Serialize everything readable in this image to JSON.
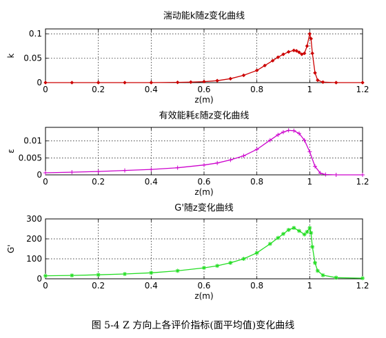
{
  "caption": "图  5-4   Z 方向上各评价指标(面平均值)变化曲线",
  "chart_data": [
    {
      "type": "line",
      "title": "湍动能k随z变化曲线",
      "xlabel": "z(m)",
      "ylabel": "k",
      "xlim": [
        0,
        1.2
      ],
      "ylim": [
        0,
        0.11
      ],
      "xticks": [
        "0",
        "0.2",
        "0.4",
        "0.6",
        "0.8",
        "1",
        "1.2"
      ],
      "yticks": [
        "0",
        "0.05",
        "0.1"
      ],
      "ytick_values": [
        0,
        0.05,
        0.1
      ],
      "grid": true,
      "marker": "diamond",
      "color": "#cc0000",
      "x": [
        0,
        0.1,
        0.2,
        0.3,
        0.4,
        0.5,
        0.55,
        0.6,
        0.65,
        0.7,
        0.75,
        0.8,
        0.83,
        0.86,
        0.88,
        0.9,
        0.92,
        0.94,
        0.95,
        0.96,
        0.97,
        0.98,
        0.99,
        1.0,
        1.005,
        1.01,
        1.02,
        1.03,
        1.05,
        1.1,
        1.2
      ],
      "y": [
        0,
        0,
        0,
        0,
        0,
        0.0005,
        0.001,
        0.002,
        0.004,
        0.008,
        0.015,
        0.025,
        0.035,
        0.045,
        0.052,
        0.058,
        0.063,
        0.066,
        0.065,
        0.062,
        0.058,
        0.06,
        0.075,
        0.1,
        0.09,
        0.06,
        0.02,
        0.005,
        0.001,
        0,
        0
      ]
    },
    {
      "type": "line",
      "title": "有效能耗ε随z变化曲线",
      "xlabel": "z(m)",
      "ylabel": "ε",
      "xlim": [
        0,
        1.2
      ],
      "ylim": [
        0,
        0.014
      ],
      "xticks": [
        "0",
        "0.2",
        "0.4",
        "0.6",
        "0.8",
        "1",
        "1.2"
      ],
      "yticks": [
        "0",
        "0.005",
        "0.01"
      ],
      "ytick_values": [
        0,
        0.005,
        0.01
      ],
      "grid": true,
      "marker": "plus",
      "color": "#cc00cc",
      "x": [
        0,
        0.1,
        0.2,
        0.3,
        0.4,
        0.5,
        0.6,
        0.65,
        0.7,
        0.75,
        0.8,
        0.85,
        0.88,
        0.9,
        0.92,
        0.94,
        0.96,
        0.98,
        1.0,
        1.02,
        1.04,
        1.06,
        1.1,
        1.2
      ],
      "y": [
        0.0006,
        0.0008,
        0.001,
        0.0013,
        0.0016,
        0.0021,
        0.0029,
        0.0035,
        0.0044,
        0.0056,
        0.0075,
        0.0102,
        0.0118,
        0.0126,
        0.0131,
        0.013,
        0.0122,
        0.0102,
        0.0068,
        0.0025,
        0.0005,
        0.0001,
        0,
        0
      ]
    },
    {
      "type": "line",
      "title": "G'随z变化曲线",
      "xlabel": "z(m)",
      "ylabel": "G'",
      "xlim": [
        0,
        1.2
      ],
      "ylim": [
        0,
        300
      ],
      "xticks": [
        "0",
        "0.2",
        "0.4",
        "0.6",
        "0.8",
        "1",
        "1.2"
      ],
      "yticks": [
        "0",
        "100",
        "200",
        "300"
      ],
      "ytick_values": [
        0,
        100,
        200,
        300
      ],
      "grid": true,
      "marker": "star",
      "color": "#22dd22",
      "x": [
        0,
        0.1,
        0.2,
        0.3,
        0.4,
        0.5,
        0.6,
        0.65,
        0.7,
        0.75,
        0.8,
        0.85,
        0.88,
        0.9,
        0.92,
        0.94,
        0.96,
        0.98,
        0.99,
        1.0,
        1.005,
        1.01,
        1.02,
        1.03,
        1.05,
        1.1,
        1.2
      ],
      "y": [
        15,
        17,
        20,
        24,
        30,
        40,
        55,
        65,
        80,
        100,
        130,
        175,
        205,
        225,
        245,
        255,
        240,
        222,
        235,
        255,
        230,
        160,
        80,
        40,
        18,
        6,
        3
      ]
    }
  ]
}
